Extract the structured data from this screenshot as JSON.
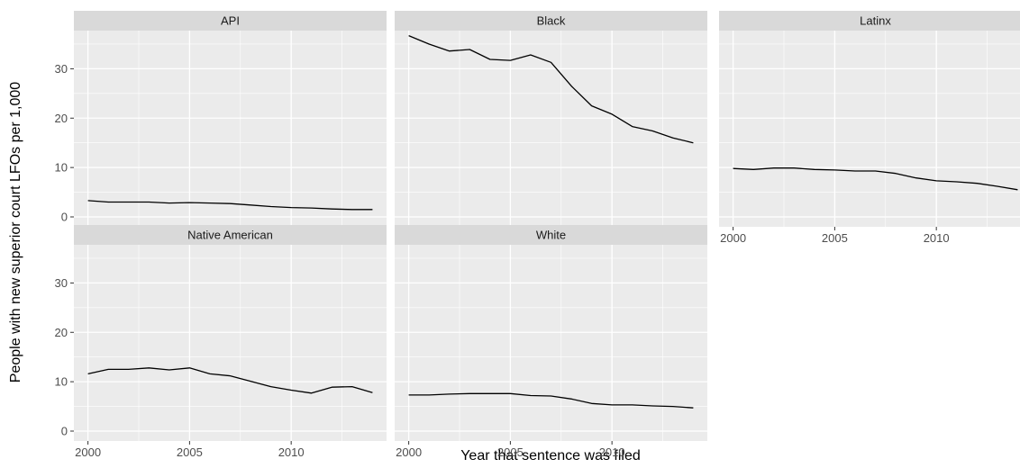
{
  "chart_data": {
    "type": "line",
    "layout": "facet-grid 2x3",
    "xlabel": "Year that sentence was filed",
    "ylabel": "People with new superior court LFOs per 1,000",
    "xlim": [
      2000,
      2014
    ],
    "ylim": [
      0,
      37
    ],
    "x_ticks": [
      2000,
      2005,
      2010
    ],
    "y_ticks": [
      0,
      10,
      20,
      30
    ],
    "grid": true,
    "colors": {
      "panel_bg": "#ebebeb",
      "strip_bg": "#d9d9d9",
      "grid": "#ffffff",
      "line": "#000000"
    },
    "x": [
      2000,
      2001,
      2002,
      2003,
      2004,
      2005,
      2006,
      2007,
      2008,
      2009,
      2010,
      2011,
      2012,
      2013,
      2014
    ],
    "panels": [
      {
        "name": "API",
        "values": [
          3.3,
          3.0,
          3.0,
          3.0,
          2.8,
          2.9,
          2.8,
          2.7,
          2.4,
          2.1,
          1.9,
          1.8,
          1.6,
          1.5,
          1.5
        ]
      },
      {
        "name": "Black",
        "values": [
          36.7,
          35.0,
          33.6,
          33.9,
          31.9,
          31.7,
          32.8,
          31.3,
          26.5,
          22.5,
          20.8,
          18.3,
          17.4,
          16.0,
          15.0
        ]
      },
      {
        "name": "Latinx",
        "values": [
          9.8,
          9.6,
          9.9,
          9.9,
          9.6,
          9.5,
          9.3,
          9.3,
          8.8,
          7.9,
          7.3,
          7.1,
          6.8,
          6.2,
          5.5
        ]
      },
      {
        "name": "Native American",
        "values": [
          11.6,
          12.5,
          12.5,
          12.8,
          12.4,
          12.8,
          11.6,
          11.2,
          10.1,
          9.0,
          8.3,
          7.7,
          8.9,
          9.0,
          7.8
        ]
      },
      {
        "name": "White",
        "values": [
          7.3,
          7.3,
          7.5,
          7.6,
          7.6,
          7.6,
          7.2,
          7.1,
          6.5,
          5.6,
          5.3,
          5.3,
          5.1,
          5.0,
          4.7
        ]
      }
    ]
  }
}
